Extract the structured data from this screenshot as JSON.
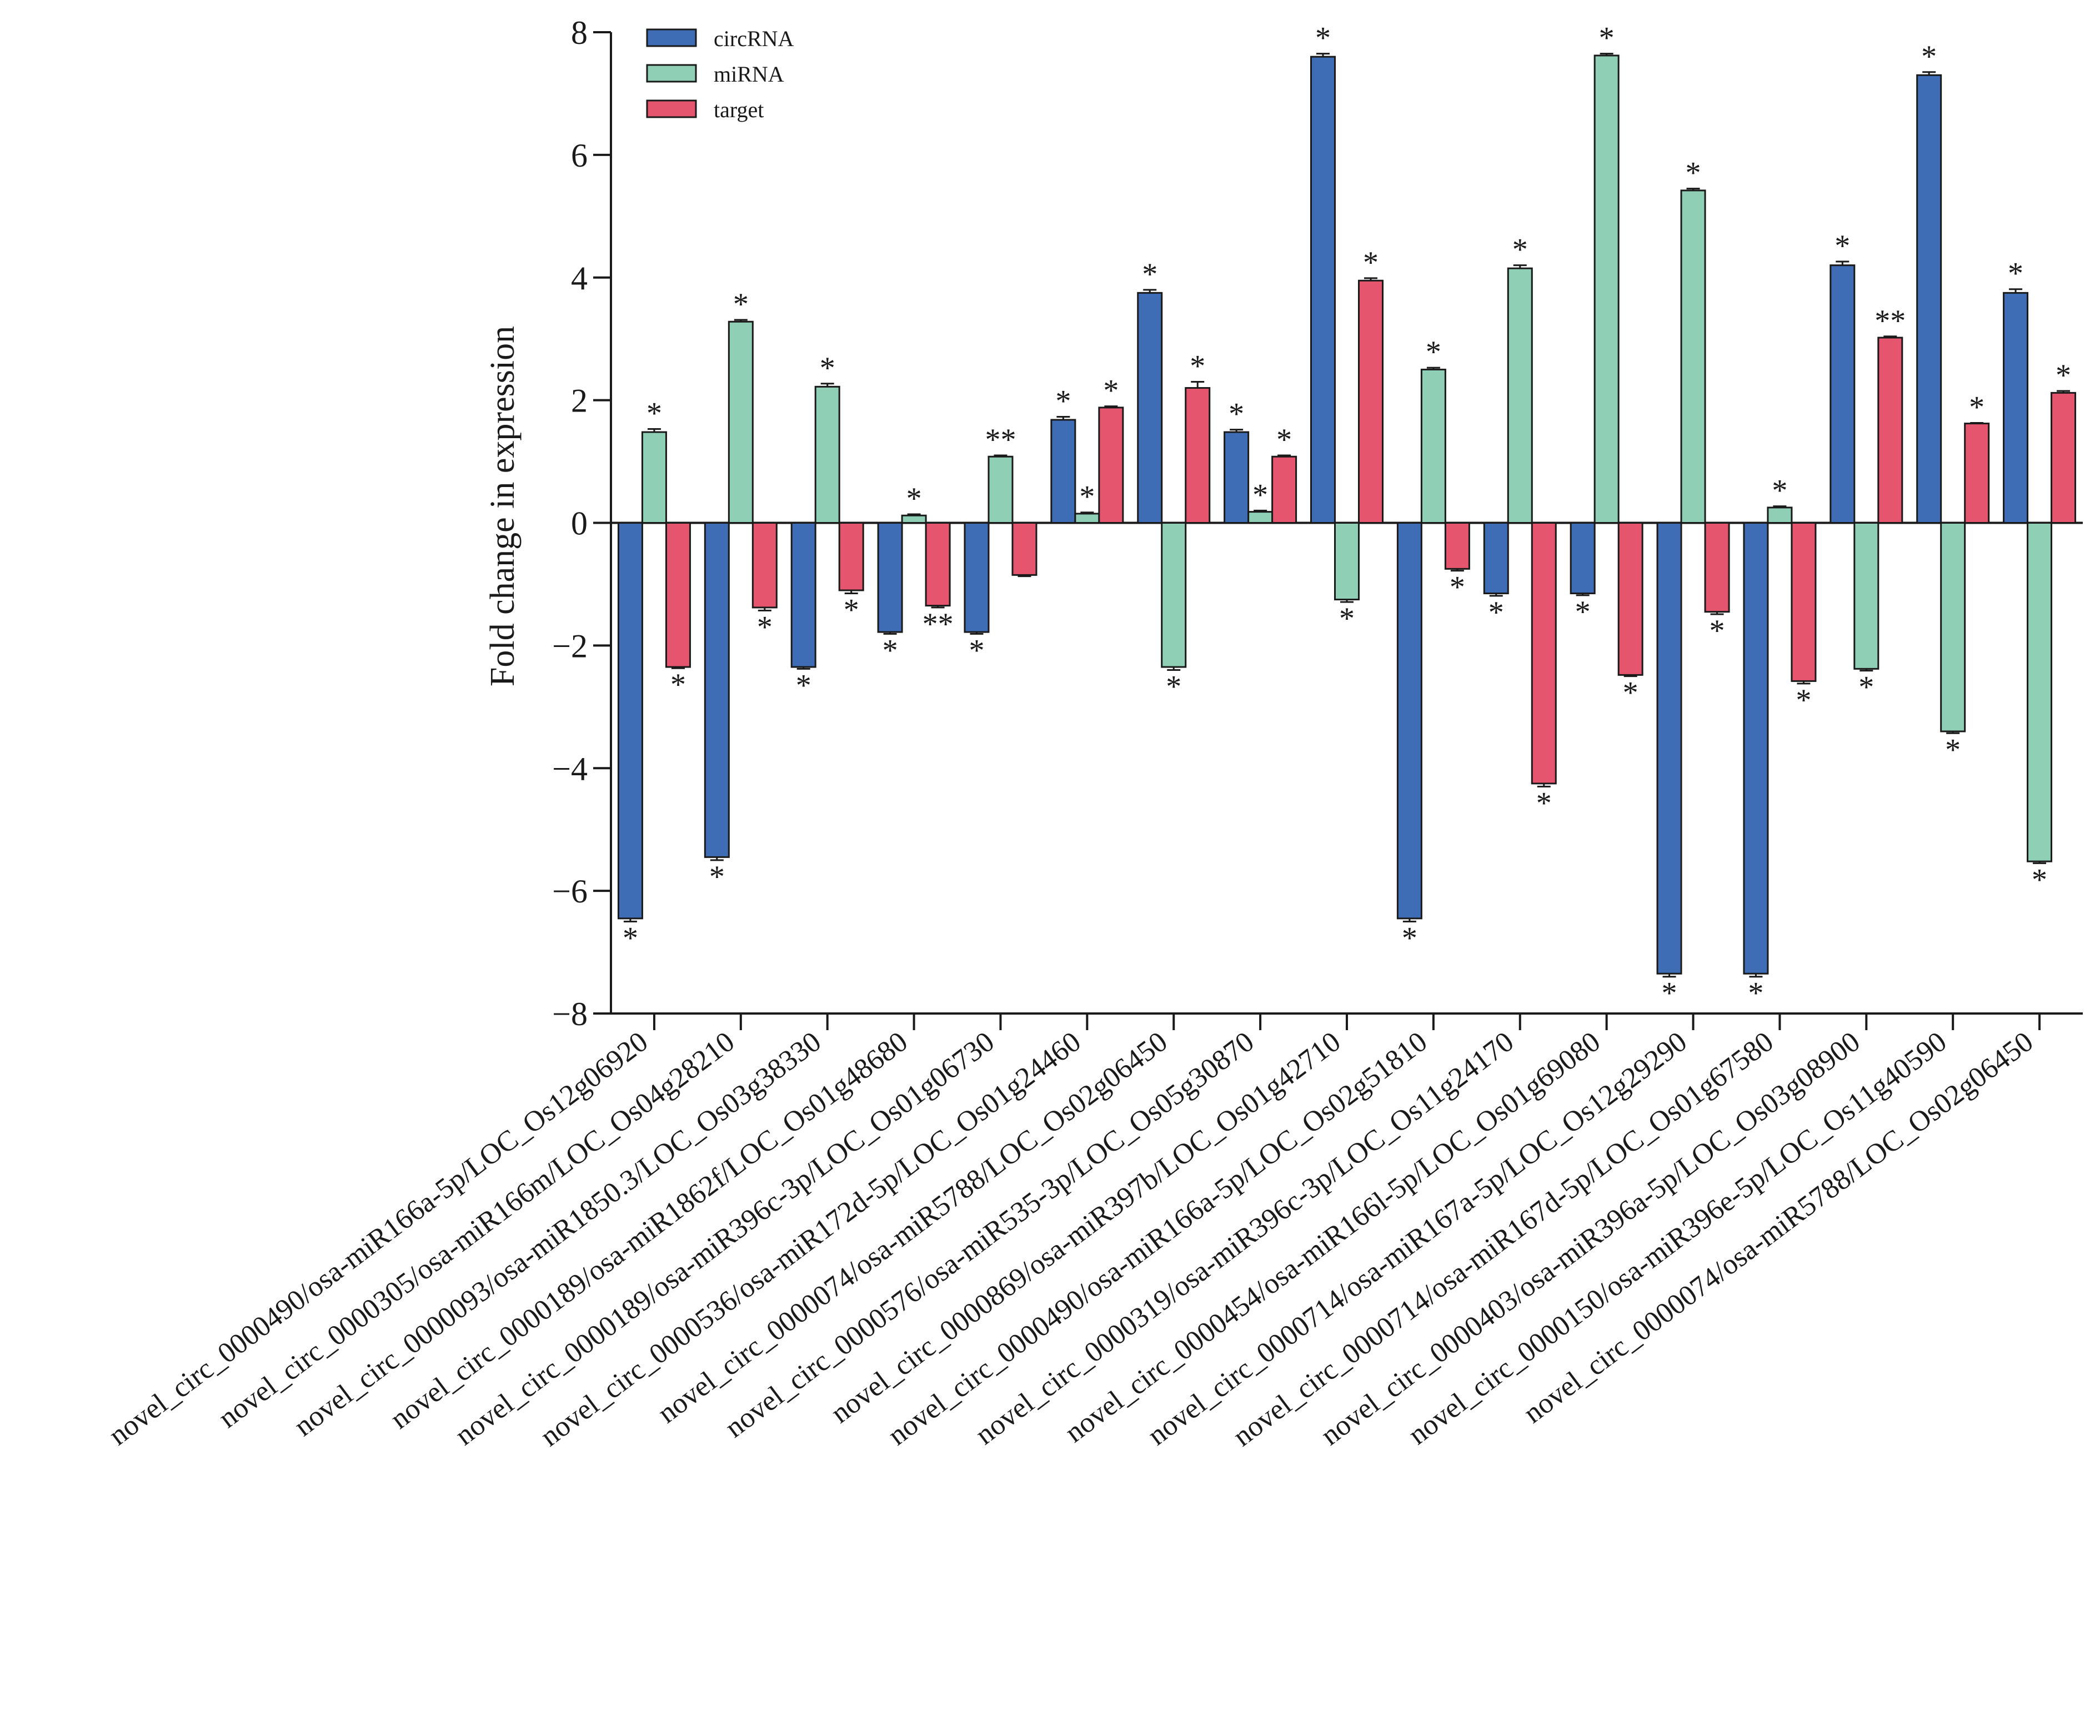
{
  "chart_data": {
    "type": "bar",
    "title": "",
    "xlabel": "",
    "ylabel": "Fold change in expression",
    "ylim": [
      -8,
      8
    ],
    "yticks": [
      -8,
      -6,
      -4,
      -2,
      0,
      2,
      4,
      6,
      8
    ],
    "ytick_labels": [
      "−8",
      "−6",
      "−4",
      "−2",
      "0",
      "2",
      "4",
      "6",
      "8"
    ],
    "legend_position": "top-left",
    "categories": [
      "novel_circ_0000490/osa-miR166a-5p/LOC_Os12g06920",
      "novel_circ_0000305/osa-miR166m/LOC_Os04g28210",
      "novel_circ_0000093/osa-miR1850.3/LOC_Os03g38330",
      "novel_circ_0000189/osa-miR1862f/LOC_Os01g48680",
      "novel_circ_0000189/osa-miR396c-3p/LOC_Os01g06730",
      "novel_circ_0000536/osa-miR172d-5p/LOC_Os01g24460",
      "novel_circ_0000074/osa-miR5788/LOC_Os02g06450",
      "novel_circ_0000576/osa-miR535-3p/LOC_Os05g30870",
      "novel_circ_0000869/osa-miR397b/LOC_Os01g42710",
      "novel_circ_0000490/osa-miR166a-5p/LOC_Os02g51810",
      "novel_circ_0000319/osa-miR396c-3p/LOC_Os11g24170",
      "novel_circ_0000454/osa-miR166l-5p/LOC_Os01g69080",
      "novel_circ_0000714/osa-miR167a-5p/LOC_Os12g29290",
      "novel_circ_0000714/osa-miR167d-5p/LOC_Os01g67580",
      "novel_circ_0000403/osa-miR396a-5p/LOC_Os03g08900",
      "novel_circ_0000150/osa-miR396e-5p/LOC_Os11g40590",
      "novel_circ_0000074/osa-miR5788/LOC_Os02g06450"
    ],
    "series": [
      {
        "name": "circRNA",
        "color": "#3f6db5",
        "values": [
          -6.45,
          -5.45,
          -2.35,
          -1.78,
          -1.78,
          1.68,
          3.75,
          1.48,
          7.6,
          -6.45,
          -1.15,
          -1.15,
          -7.35,
          -7.35,
          4.2,
          7.3,
          3.75
        ],
        "errors": [
          0.05,
          0.05,
          0.03,
          0.03,
          0.03,
          0.05,
          0.05,
          0.04,
          0.05,
          0.05,
          0.04,
          0.03,
          0.05,
          0.05,
          0.06,
          0.05,
          0.06
        ],
        "significance": [
          "*",
          "*",
          "*",
          "*",
          "*",
          "*",
          "*",
          "*",
          "*",
          "*",
          "*",
          "*",
          "*",
          "*",
          "*",
          "*",
          "*"
        ]
      },
      {
        "name": "miRNA",
        "color": "#8ecfb6",
        "values": [
          1.48,
          3.28,
          2.22,
          0.12,
          1.08,
          0.15,
          -2.35,
          0.18,
          -1.25,
          2.5,
          4.15,
          7.62,
          5.42,
          0.25,
          -2.38,
          -3.4,
          -5.52
        ],
        "errors": [
          0.05,
          0.03,
          0.05,
          0.02,
          0.02,
          0.02,
          0.05,
          0.02,
          0.04,
          0.03,
          0.05,
          0.03,
          0.03,
          0.02,
          0.03,
          0.03,
          0.03
        ],
        "significance": [
          "*",
          "*",
          "*",
          "*",
          "**",
          "*",
          "*",
          "*",
          "*",
          "*",
          "*",
          "*",
          "*",
          "*",
          "*",
          "*",
          "*"
        ]
      },
      {
        "name": "target",
        "color": "#e6556e",
        "values": [
          -2.35,
          -1.38,
          -1.1,
          -1.35,
          -0.85,
          1.88,
          2.2,
          1.08,
          3.95,
          -0.75,
          -4.25,
          -2.48,
          -1.45,
          -2.58,
          3.02,
          1.62,
          2.12
        ],
        "errors": [
          0.02,
          0.05,
          0.05,
          0.03,
          0.02,
          0.02,
          0.1,
          0.02,
          0.04,
          0.03,
          0.05,
          0.02,
          0.04,
          0.04,
          0.02,
          0.01,
          0.03
        ],
        "significance": [
          "*",
          "*",
          "*",
          "**",
          "",
          "*",
          "*",
          "*",
          "*",
          "*",
          "*",
          "*",
          "*",
          "*",
          "**",
          "*",
          "*"
        ]
      }
    ]
  }
}
